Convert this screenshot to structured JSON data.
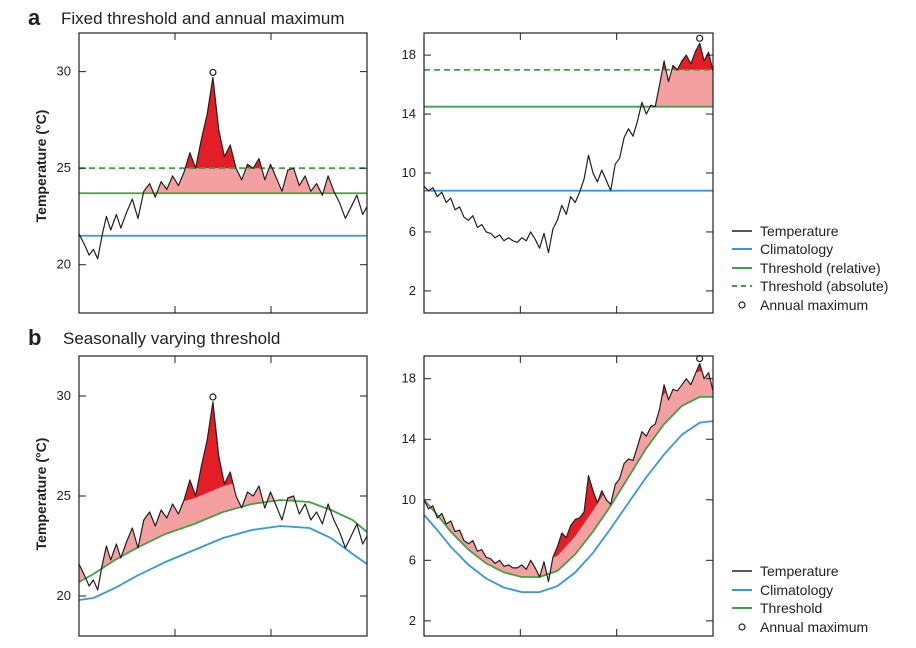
{
  "panels": {
    "a": {
      "letter": "a",
      "title": "Fixed threshold and annual maximum"
    },
    "b": {
      "letter": "b",
      "title": "Seasonally varying threshold"
    }
  },
  "y_axis_label": "Temperature (°C)",
  "colors": {
    "temperature": "#231f20",
    "climatology": "#3a97d4",
    "threshold": "#43a047",
    "exceed_light": "#f4a0a0",
    "exceed_dark": "#e41e26"
  },
  "legend_a": [
    "Temperature",
    "Climatology",
    "Threshold (relative)",
    "Threshold (absolute)",
    "Annual maximum"
  ],
  "legend_b": [
    "Temperature",
    "Climatology",
    "Threshold",
    "Annual maximum"
  ],
  "chart_data": [
    {
      "id": "a-left",
      "type": "line",
      "ylim": [
        17.5,
        32
      ],
      "yticks": [
        20,
        25,
        30
      ],
      "temperature": {
        "x": [
          0,
          4,
          7,
          10,
          13,
          16,
          19,
          22,
          26,
          29,
          33,
          37,
          41,
          45,
          49,
          53,
          57,
          61,
          65,
          69,
          73,
          77,
          81,
          85,
          89,
          93,
          97,
          101,
          105,
          109,
          113,
          117,
          121,
          125,
          129,
          133,
          137,
          141,
          145,
          149,
          153,
          157,
          161,
          165,
          169,
          173,
          177,
          181,
          185,
          189,
          193,
          197,
          200
        ],
        "y": [
          21.6,
          21.0,
          20.5,
          20.8,
          20.3,
          21.5,
          22.5,
          21.8,
          22.6,
          21.9,
          22.7,
          23.4,
          22.4,
          23.8,
          24.2,
          23.5,
          24.3,
          23.9,
          24.6,
          24.1,
          24.8,
          25.8,
          25.0,
          26.5,
          27.8,
          29.7,
          27.0,
          25.6,
          26.2,
          25.0,
          24.4,
          25.2,
          25.0,
          25.5,
          24.4,
          25.2,
          24.5,
          23.8,
          24.9,
          25.0,
          24.1,
          24.6,
          23.8,
          24.2,
          23.6,
          24.6,
          23.8,
          23.2,
          22.4,
          23.0,
          23.6,
          22.6,
          23.0
        ]
      },
      "climatology": 21.5,
      "threshold_relative": 23.7,
      "threshold_absolute": 25.0,
      "annual_max": {
        "x": 93,
        "y": 29.7
      }
    },
    {
      "id": "a-right",
      "type": "line",
      "ylim": [
        0.5,
        19.5
      ],
      "yticks": [
        2,
        6,
        10,
        14,
        18
      ],
      "temperature": {
        "x": [
          0,
          5,
          10,
          15,
          20,
          25,
          30,
          35,
          40,
          45,
          50,
          55,
          60,
          65,
          70,
          75,
          80,
          85,
          90,
          95,
          100,
          105,
          110,
          115,
          120,
          125,
          130,
          135,
          140,
          145,
          150,
          155,
          160,
          165,
          170,
          175,
          180,
          185,
          190,
          195,
          200,
          205,
          210,
          215,
          220,
          225,
          230,
          235,
          240,
          245,
          250,
          255,
          260,
          265,
          270,
          275,
          280,
          285,
          290,
          295,
          300,
          305,
          310,
          315,
          320,
          325
        ],
        "y": [
          9.1,
          8.8,
          9.0,
          8.4,
          8.7,
          8.0,
          8.3,
          7.5,
          7.7,
          7.0,
          6.8,
          7.1,
          6.3,
          6.5,
          6.0,
          5.9,
          5.6,
          5.8,
          5.4,
          5.6,
          5.4,
          5.3,
          5.6,
          5.4,
          6.0,
          5.5,
          4.9,
          5.9,
          4.6,
          6.2,
          6.8,
          7.8,
          7.2,
          8.4,
          8.0,
          8.7,
          9.6,
          11.2,
          10.0,
          9.4,
          10.2,
          9.5,
          8.8,
          10.6,
          11.0,
          12.4,
          13.0,
          12.5,
          13.5,
          14.8,
          14.0,
          14.6,
          14.5,
          16.0,
          17.6,
          16.2,
          17.3,
          17.0,
          17.6,
          18.0,
          17.4,
          18.2,
          18.8,
          17.6,
          18.2,
          16.9
        ]
      },
      "climatology": 8.8,
      "threshold_relative": 14.5,
      "threshold_absolute": 17.0,
      "annual_max": {
        "x": 310,
        "y": 18.8
      }
    },
    {
      "id": "b-left",
      "type": "line",
      "ylim": [
        18,
        32
      ],
      "yticks": [
        20,
        25,
        30
      ],
      "temperature": {
        "x": [
          0,
          4,
          7,
          10,
          13,
          16,
          19,
          22,
          26,
          29,
          33,
          37,
          41,
          45,
          49,
          53,
          57,
          61,
          65,
          69,
          73,
          77,
          81,
          85,
          89,
          93,
          97,
          101,
          105,
          109,
          113,
          117,
          121,
          125,
          129,
          133,
          137,
          141,
          145,
          149,
          153,
          157,
          161,
          165,
          169,
          173,
          177,
          181,
          185,
          189,
          193,
          197,
          200
        ],
        "y": [
          21.6,
          21.0,
          20.5,
          20.8,
          20.3,
          21.5,
          22.5,
          21.8,
          22.6,
          21.9,
          22.7,
          23.4,
          22.4,
          23.8,
          24.2,
          23.5,
          24.3,
          23.9,
          24.6,
          24.1,
          24.8,
          25.8,
          25.0,
          26.5,
          27.8,
          29.7,
          27.0,
          25.6,
          26.2,
          25.0,
          24.4,
          25.2,
          25.0,
          25.5,
          24.4,
          25.2,
          24.5,
          23.8,
          24.9,
          25.0,
          24.1,
          24.6,
          23.8,
          24.2,
          23.6,
          24.6,
          23.8,
          23.2,
          22.4,
          23.0,
          23.6,
          22.6,
          23.0
        ]
      },
      "climatology": {
        "x": [
          0,
          10,
          25,
          40,
          60,
          80,
          100,
          120,
          140,
          160,
          175,
          190,
          200
        ],
        "y": [
          19.8,
          19.9,
          20.4,
          21.0,
          21.7,
          22.3,
          22.9,
          23.3,
          23.5,
          23.4,
          22.9,
          22.1,
          21.6
        ]
      },
      "threshold": {
        "x": [
          0,
          10,
          25,
          40,
          60,
          80,
          100,
          120,
          140,
          160,
          175,
          190,
          200
        ],
        "y": [
          20.7,
          21.1,
          21.8,
          22.4,
          23.1,
          23.6,
          24.2,
          24.6,
          24.8,
          24.7,
          24.3,
          23.8,
          23.2
        ]
      },
      "annual_max": {
        "x": 93,
        "y": 29.7
      }
    },
    {
      "id": "b-right",
      "type": "line",
      "ylim": [
        1,
        19.5
      ],
      "yticks": [
        2,
        6,
        10,
        14,
        18
      ],
      "temperature": {
        "x": [
          0,
          5,
          10,
          15,
          20,
          25,
          30,
          35,
          40,
          45,
          50,
          55,
          60,
          65,
          70,
          75,
          80,
          85,
          90,
          95,
          100,
          105,
          110,
          115,
          120,
          125,
          130,
          135,
          140,
          145,
          150,
          155,
          160,
          165,
          170,
          175,
          180,
          185,
          190,
          195,
          200,
          205,
          210,
          215,
          220,
          225,
          230,
          235,
          240,
          245,
          250,
          255,
          260,
          265,
          270,
          275,
          280,
          285,
          290,
          295,
          300,
          305,
          310,
          315,
          320,
          325
        ],
        "y": [
          10.0,
          9.4,
          9.6,
          8.8,
          9.1,
          8.4,
          8.6,
          7.9,
          8.0,
          7.3,
          7.1,
          7.3,
          6.6,
          6.7,
          6.2,
          6.1,
          5.8,
          6.0,
          5.6,
          5.7,
          5.5,
          5.5,
          5.7,
          5.4,
          6.0,
          5.5,
          4.9,
          5.9,
          4.6,
          6.2,
          6.9,
          7.8,
          7.5,
          8.3,
          8.7,
          8.8,
          9.2,
          11.6,
          10.6,
          9.8,
          10.6,
          10.0,
          9.7,
          11.0,
          11.4,
          12.4,
          12.7,
          12.6,
          13.5,
          14.5,
          14.2,
          14.8,
          15.0,
          16.0,
          17.6,
          16.6,
          17.3,
          17.2,
          17.6,
          18.0,
          17.6,
          18.3,
          19.0,
          18.0,
          18.4,
          17.2
        ]
      },
      "climatology": {
        "x": [
          0,
          15,
          30,
          50,
          70,
          90,
          110,
          130,
          150,
          170,
          190,
          210,
          230,
          250,
          270,
          290,
          310,
          325
        ],
        "y": [
          9.0,
          8.0,
          6.9,
          5.7,
          4.8,
          4.2,
          3.9,
          3.9,
          4.3,
          5.2,
          6.5,
          8.1,
          9.8,
          11.5,
          13.0,
          14.3,
          15.1,
          15.2
        ]
      },
      "threshold": {
        "x": [
          0,
          15,
          30,
          50,
          70,
          90,
          110,
          130,
          150,
          170,
          190,
          210,
          230,
          250,
          270,
          290,
          310,
          325
        ],
        "y": [
          10.0,
          9.0,
          7.9,
          6.7,
          5.8,
          5.2,
          4.9,
          4.9,
          5.3,
          6.4,
          7.9,
          9.6,
          11.5,
          13.4,
          15.0,
          16.2,
          16.8,
          16.8
        ]
      },
      "annual_max": {
        "x": 310,
        "y": 19.0
      }
    }
  ]
}
